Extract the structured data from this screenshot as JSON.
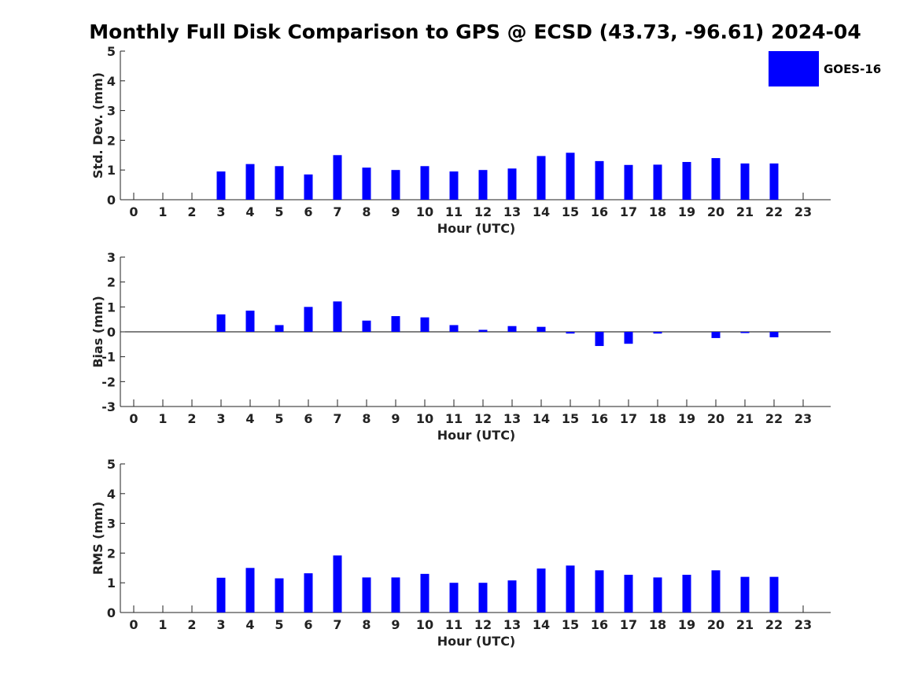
{
  "title": "Monthly Full Disk Comparison to GPS @ ECSD (43.73, -96.61) 2024-04",
  "legend": {
    "label": "GOES-16",
    "color": "#0000ff"
  },
  "chart_data": [
    {
      "type": "bar",
      "ylabel": "Std. Dev. (mm)",
      "xlabel": "Hour (UTC)",
      "ylim": [
        0,
        5
      ],
      "yticks": [
        0,
        1,
        2,
        3,
        4,
        5
      ],
      "categories": [
        "0",
        "1",
        "2",
        "3",
        "4",
        "5",
        "6",
        "7",
        "8",
        "9",
        "10",
        "11",
        "12",
        "13",
        "14",
        "15",
        "16",
        "17",
        "18",
        "19",
        "20",
        "21",
        "22",
        "23"
      ],
      "series": [
        {
          "name": "GOES-16",
          "values": [
            null,
            null,
            null,
            0.95,
            1.2,
            1.13,
            0.85,
            1.5,
            1.08,
            1.0,
            1.13,
            0.95,
            1.0,
            1.05,
            1.47,
            1.58,
            1.3,
            1.17,
            1.18,
            1.27,
            1.4,
            1.22,
            1.22,
            null
          ]
        }
      ],
      "legend": "top-right",
      "grid": false
    },
    {
      "type": "bar",
      "ylabel": "Bias (mm)",
      "xlabel": "Hour (UTC)",
      "ylim": [
        -3,
        3
      ],
      "yticks": [
        -3,
        -2,
        -1,
        0,
        1,
        2,
        3
      ],
      "categories": [
        "0",
        "1",
        "2",
        "3",
        "4",
        "5",
        "6",
        "7",
        "8",
        "9",
        "10",
        "11",
        "12",
        "13",
        "14",
        "15",
        "16",
        "17",
        "18",
        "19",
        "20",
        "21",
        "22",
        "23"
      ],
      "series": [
        {
          "name": "GOES-16",
          "values": [
            null,
            null,
            null,
            0.7,
            0.85,
            0.27,
            1.0,
            1.22,
            0.45,
            0.63,
            0.58,
            0.27,
            0.08,
            0.23,
            0.2,
            -0.07,
            -0.57,
            -0.48,
            -0.07,
            null,
            -0.25,
            -0.05,
            -0.22,
            null
          ]
        }
      ],
      "zero_line": true,
      "grid": false
    },
    {
      "type": "bar",
      "ylabel": "RMS (mm)",
      "xlabel": "Hour (UTC)",
      "ylim": [
        0,
        5
      ],
      "yticks": [
        0,
        1,
        2,
        3,
        4,
        5
      ],
      "categories": [
        "0",
        "1",
        "2",
        "3",
        "4",
        "5",
        "6",
        "7",
        "8",
        "9",
        "10",
        "11",
        "12",
        "13",
        "14",
        "15",
        "16",
        "17",
        "18",
        "19",
        "20",
        "21",
        "22",
        "23"
      ],
      "series": [
        {
          "name": "GOES-16",
          "values": [
            null,
            null,
            null,
            1.17,
            1.5,
            1.15,
            1.32,
            1.92,
            1.18,
            1.18,
            1.3,
            1.0,
            1.0,
            1.08,
            1.48,
            1.58,
            1.42,
            1.27,
            1.18,
            1.27,
            1.42,
            1.2,
            1.2,
            null
          ]
        }
      ],
      "grid": false
    }
  ]
}
